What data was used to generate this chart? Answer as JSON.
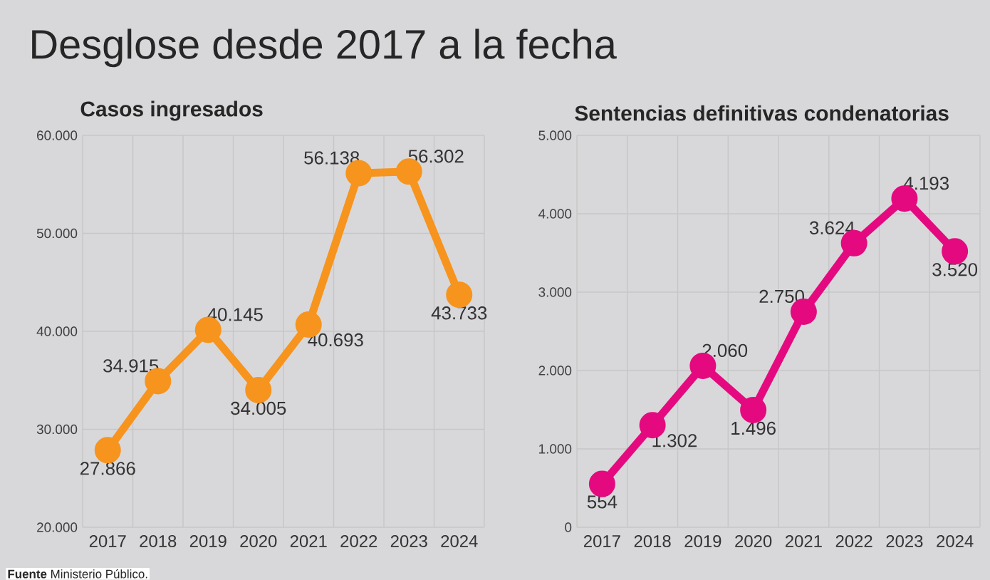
{
  "chart_data": [
    {
      "type": "line",
      "title": "Casos ingresados",
      "categories": [
        "2017",
        "2018",
        "2019",
        "2020",
        "2021",
        "2022",
        "2023",
        "2024"
      ],
      "series": [
        {
          "color": "#f7941d",
          "values": [
            27866,
            34915,
            40145,
            34005,
            40693,
            56138,
            56302,
            43733
          ],
          "value_labels": [
            "27.866",
            "34.915",
            "40.145",
            "34.005",
            "40.693",
            "56.138",
            "56.302",
            "43.733"
          ]
        }
      ],
      "ylim": [
        20000,
        60000
      ],
      "yticks": [
        {
          "value": 20000,
          "label": "20.000"
        },
        {
          "value": 30000,
          "label": "30.000"
        },
        {
          "value": 40000,
          "label": "40.000"
        },
        {
          "value": 50000,
          "label": "50.000"
        },
        {
          "value": 60000,
          "label": "60.000"
        }
      ],
      "grid": true,
      "marker": "circle",
      "line_style": "solid",
      "annotations": [
        "Desglose desde 2017 a la fecha",
        "**Fuente** Ministerio Público."
      ]
    },
    {
      "type": "line",
      "title": "Sentencias definitivas condenatorias",
      "categories": [
        "2017",
        "2018",
        "2019",
        "2020",
        "2021",
        "2022",
        "2023",
        "2024"
      ],
      "series": [
        {
          "color": "#e5097f",
          "values": [
            554,
            1302,
            2060,
            1496,
            2750,
            3624,
            4193,
            3520
          ],
          "value_labels": [
            "554",
            "1.302",
            "2.060",
            "1.496",
            "2.750",
            "3.624",
            "4.193",
            "3.520"
          ]
        }
      ],
      "ylim": [
        0,
        5000
      ],
      "yticks": [
        0,
        {
          "value": 1000,
          "label": "1.000"
        },
        {
          "value": 2000,
          "label": "2.000"
        },
        {
          "value": 3000,
          "label": "3.000"
        },
        {
          "value": 4000,
          "label": "4.000"
        },
        {
          "value": 5000,
          "label": "5.000"
        }
      ],
      "grid": true,
      "marker": "circle",
      "line_style": "solid"
    }
  ]
}
